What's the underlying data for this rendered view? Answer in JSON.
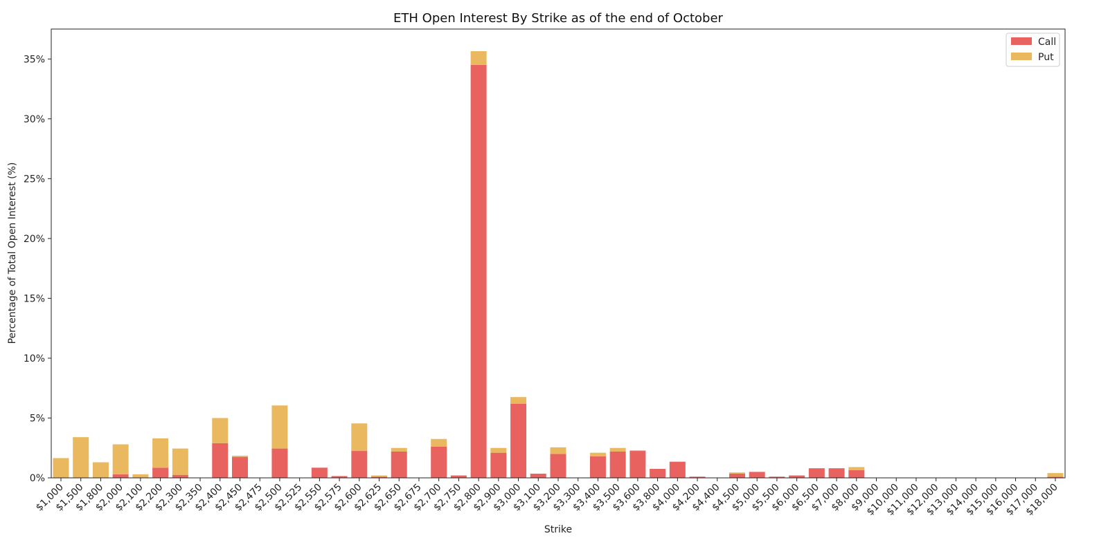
{
  "chart_data": {
    "type": "bar",
    "stacked": true,
    "title": "ETH Open Interest By Strike as of the end of October",
    "xlabel": "Strike",
    "ylabel": "Percentage of Total Open Interest (%)",
    "ylim": [
      0,
      37.5
    ],
    "yticks": [
      0,
      5,
      10,
      15,
      20,
      25,
      30,
      35
    ],
    "ytick_labels": [
      "0%",
      "5%",
      "10%",
      "15%",
      "20%",
      "25%",
      "30%",
      "35%"
    ],
    "grid": false,
    "legend_position": "top-right",
    "categories": [
      "$1,000",
      "$1,500",
      "$1,800",
      "$2,000",
      "$2,100",
      "$2,200",
      "$2,300",
      "$2,350",
      "$2,400",
      "$2,450",
      "$2,475",
      "$2,500",
      "$2,525",
      "$2,550",
      "$2,575",
      "$2,600",
      "$2,625",
      "$2,650",
      "$2,675",
      "$2,700",
      "$2,750",
      "$2,800",
      "$2,900",
      "$3,000",
      "$3,100",
      "$3,200",
      "$3,300",
      "$3,400",
      "$3,500",
      "$3,600",
      "$3,800",
      "$4,000",
      "$4,200",
      "$4,400",
      "$4,500",
      "$5,000",
      "$5,500",
      "$6,000",
      "$6,500",
      "$7,000",
      "$8,000",
      "$9,000",
      "$10,000",
      "$11,000",
      "$12,000",
      "$13,000",
      "$14,000",
      "$15,000",
      "$16,000",
      "$17,000",
      "$18,000"
    ],
    "series": [
      {
        "name": "Call",
        "color": "#e8635f",
        "values": [
          0.0,
          0.0,
          0.0,
          0.3,
          0.0,
          0.85,
          0.25,
          0.0,
          2.9,
          1.75,
          0.0,
          2.45,
          0.0,
          0.85,
          0.15,
          2.25,
          0.1,
          2.2,
          0.0,
          2.6,
          0.2,
          34.5,
          2.1,
          6.2,
          0.35,
          2.0,
          0.0,
          1.8,
          2.2,
          2.25,
          0.75,
          1.35,
          0.1,
          0.0,
          0.35,
          0.5,
          0.1,
          0.2,
          0.8,
          0.8,
          0.65,
          0.0,
          0.0,
          0.0,
          0.0,
          0.0,
          0.0,
          0.0,
          0.0,
          0.0,
          0.1
        ]
      },
      {
        "name": "Put",
        "color": "#e9b85f",
        "values": [
          1.65,
          3.4,
          1.3,
          2.5,
          0.3,
          2.45,
          2.2,
          0.0,
          2.1,
          0.1,
          0.0,
          3.6,
          0.0,
          0.0,
          0.0,
          2.3,
          0.1,
          0.3,
          0.0,
          0.65,
          0.0,
          1.15,
          0.4,
          0.55,
          0.0,
          0.55,
          0.0,
          0.3,
          0.3,
          0.05,
          0.0,
          0.0,
          0.0,
          0.0,
          0.1,
          0.0,
          0.0,
          0.0,
          0.0,
          0.0,
          0.25,
          0.0,
          0.0,
          0.0,
          0.0,
          0.0,
          0.0,
          0.0,
          0.0,
          0.0,
          0.3
        ]
      }
    ]
  }
}
